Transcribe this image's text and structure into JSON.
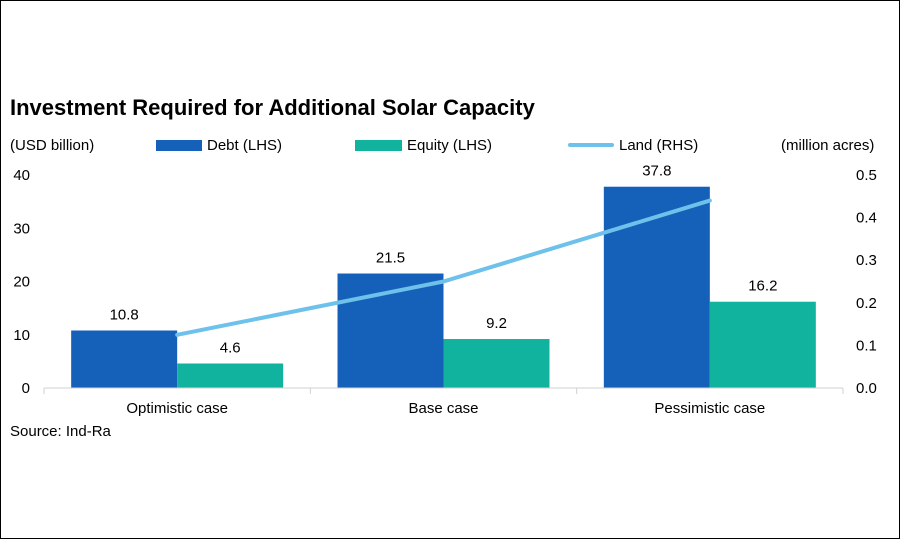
{
  "chart_data": {
    "type": "bar",
    "title": "Investment Required for Additional Solar Capacity",
    "ylabel_left": "(USD billion)",
    "ylabel_right": "(million acres)",
    "categories": [
      "Optimistic case",
      "Base case",
      "Pessimistic case"
    ],
    "series": [
      {
        "name": "Debt (LHS)",
        "type": "bar",
        "axis": "left",
        "color": "#1560b8",
        "values": [
          10.8,
          21.5,
          37.8
        ]
      },
      {
        "name": "Equity (LHS)",
        "type": "bar",
        "axis": "left",
        "color": "#12b39e",
        "values": [
          4.6,
          9.2,
          16.2
        ]
      },
      {
        "name": "Land (RHS)",
        "type": "line",
        "axis": "right",
        "color": "#6ec1ea",
        "values": [
          0.125,
          0.25,
          0.44
        ]
      }
    ],
    "ylim_left": [
      0,
      40
    ],
    "yticks_left": [
      "0",
      "10",
      "20",
      "30",
      "40"
    ],
    "ylim_right": [
      0,
      0.5
    ],
    "yticks_right": [
      "0.0",
      "0.1",
      "0.2",
      "0.3",
      "0.4",
      "0.5"
    ],
    "data_labels": {
      "Debt (LHS)": [
        "10.8",
        "21.5",
        "37.8"
      ],
      "Equity (LHS)": [
        "4.6",
        "9.2",
        "16.2"
      ]
    },
    "legend_position": "top",
    "grid": false,
    "source": "Source: Ind-Ra"
  }
}
